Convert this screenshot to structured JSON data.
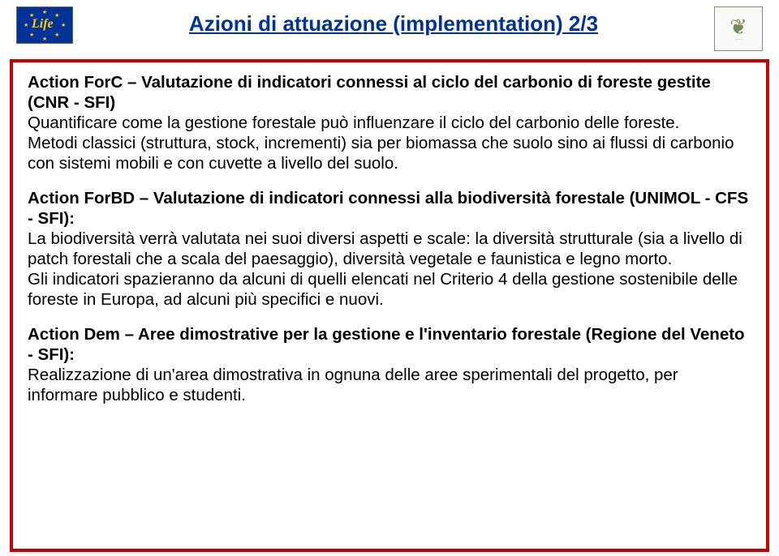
{
  "header": {
    "title": "Azioni di attuazione (implementation) 2/3",
    "life_label": "Life"
  },
  "colors": {
    "title_color": "#003399",
    "border_color": "#cc0000",
    "text_color": "#000000",
    "eu_blue": "#003399",
    "eu_yellow": "#ffcc00"
  },
  "typography": {
    "title_fontsize": 26,
    "body_fontsize": 20.5,
    "font_family": "Arial"
  },
  "sections": [
    {
      "heading": "Action ForC – Valutazione di indicatori connessi al ciclo del carbonio di foreste gestite (CNR - SFI)",
      "body": "Quantificare come la gestione forestale può influenzare il ciclo del carbonio delle foreste.\nMetodi classici (struttura, stock, incrementi) sia per biomassa che suolo sino ai flussi di carbonio con sistemi mobili e con cuvette a livello del suolo."
    },
    {
      "heading": "Action ForBD – Valutazione di indicatori connessi alla biodiversità forestale (UNIMOL - CFS - SFI):",
      "body": "La biodiversità verrà valutata nei suoi diversi aspetti e scale: la diversità strutturale (sia a livello di patch forestali che a scala del paesaggio), diversità vegetale e faunistica e legno morto.\nGli indicatori spazieranno da alcuni di quelli elencati nel Criterio 4 della gestione sostenibile delle foreste in Europa, ad alcuni più specifici e nuovi."
    },
    {
      "heading": "Action Dem – Aree dimostrative per la gestione e l'inventario forestale (Regione del Veneto - SFI):",
      "body": "Realizzazione di un'area dimostrativa in ognuna delle aree sperimentali del progetto, per informare pubblico e studenti."
    }
  ]
}
